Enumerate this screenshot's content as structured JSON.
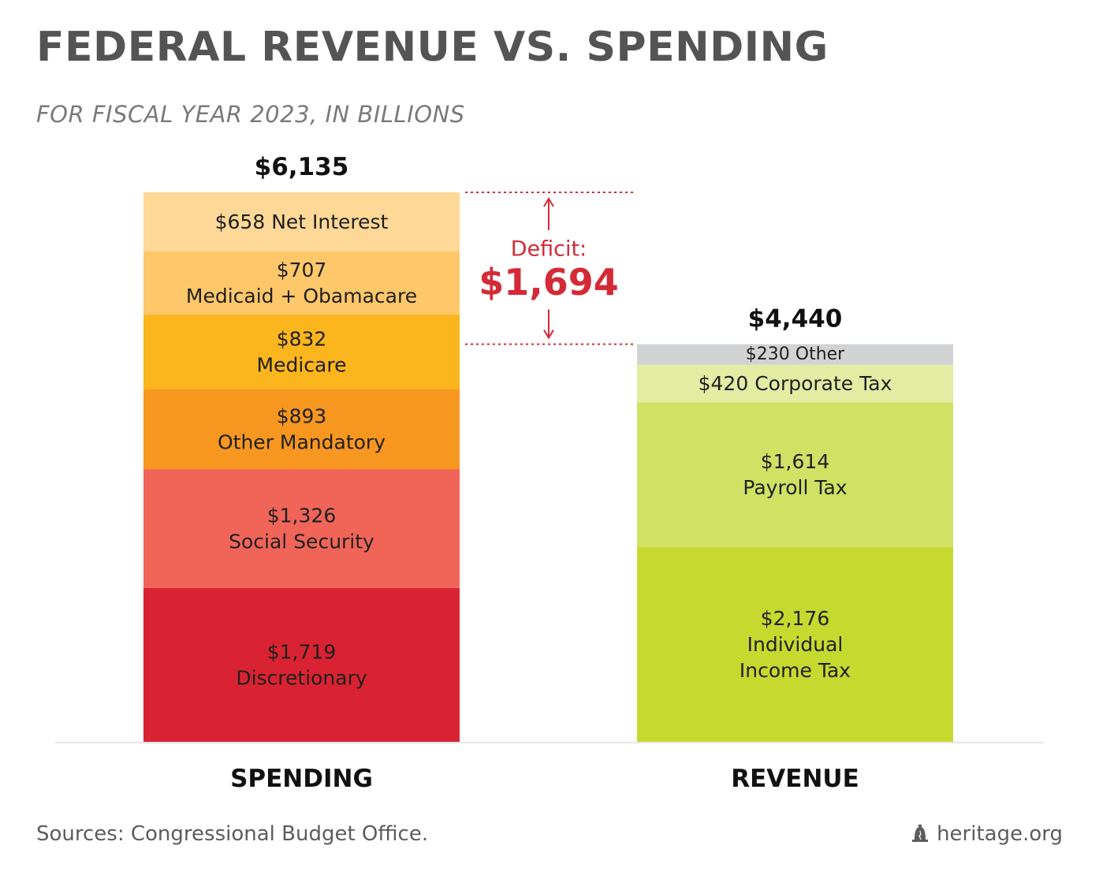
{
  "title": "FEDERAL REVENUE VS. SPENDING",
  "subtitle": "FOR FISCAL YEAR 2023, IN BILLIONS",
  "source": "Sources: Congressional Budget Office.",
  "brand": "heritage.org",
  "brand_icon": "liberty-bell-icon",
  "chart_data": {
    "type": "bar",
    "stacked": true,
    "unit": "billions of dollars",
    "categories": [
      "SPENDING",
      "REVENUE"
    ],
    "totals": [
      {
        "category": "SPENDING",
        "value": 6135,
        "label": "$6,135"
      },
      {
        "category": "REVENUE",
        "value": 4440,
        "label": "$4,440"
      }
    ],
    "stacks": [
      {
        "category": "SPENDING",
        "segments": [
          {
            "name": "Discretionary",
            "value": 1719,
            "lines": [
              "$1,719",
              "Discretionary"
            ],
            "color": "#da2332"
          },
          {
            "name": "Social Security",
            "value": 1326,
            "lines": [
              "$1,326",
              "Social Security"
            ],
            "color": "#f16559"
          },
          {
            "name": "Other Mandatory",
            "value": 893,
            "lines": [
              "$893",
              "Other Mandatory"
            ],
            "color": "#f7971f"
          },
          {
            "name": "Medicare",
            "value": 832,
            "lines": [
              "$832",
              "Medicare"
            ],
            "color": "#fbb51d"
          },
          {
            "name": "Medicaid + Obamacare",
            "value": 707,
            "lines": [
              "$707",
              "Medicaid + Obamacare"
            ],
            "color": "#fdc76a"
          },
          {
            "name": "Net Interest",
            "value": 658,
            "lines": [
              "$658 Net Interest"
            ],
            "color": "#fdd896"
          }
        ]
      },
      {
        "category": "REVENUE",
        "segments": [
          {
            "name": "Individual Income Tax",
            "value": 2176,
            "lines": [
              "$2,176",
              "Individual",
              "Income Tax"
            ],
            "color": "#c6d92f"
          },
          {
            "name": "Payroll Tax",
            "value": 1614,
            "lines": [
              "$1,614",
              "Payroll Tax"
            ],
            "color": "#d0e164"
          },
          {
            "name": "Corporate Tax",
            "value": 420,
            "lines": [
              "$420 Corporate Tax"
            ],
            "color": "#e2eca3"
          },
          {
            "name": "Other",
            "value": 230,
            "lines": [
              "$230 Other"
            ],
            "color": "#d1d2d4"
          }
        ]
      }
    ],
    "annotation": {
      "label": "Deficit:",
      "value": 1694,
      "value_label": "$1,694",
      "color": "#d42a36"
    },
    "ylim": [
      0,
      6135
    ],
    "grid": false,
    "legend": "none"
  }
}
